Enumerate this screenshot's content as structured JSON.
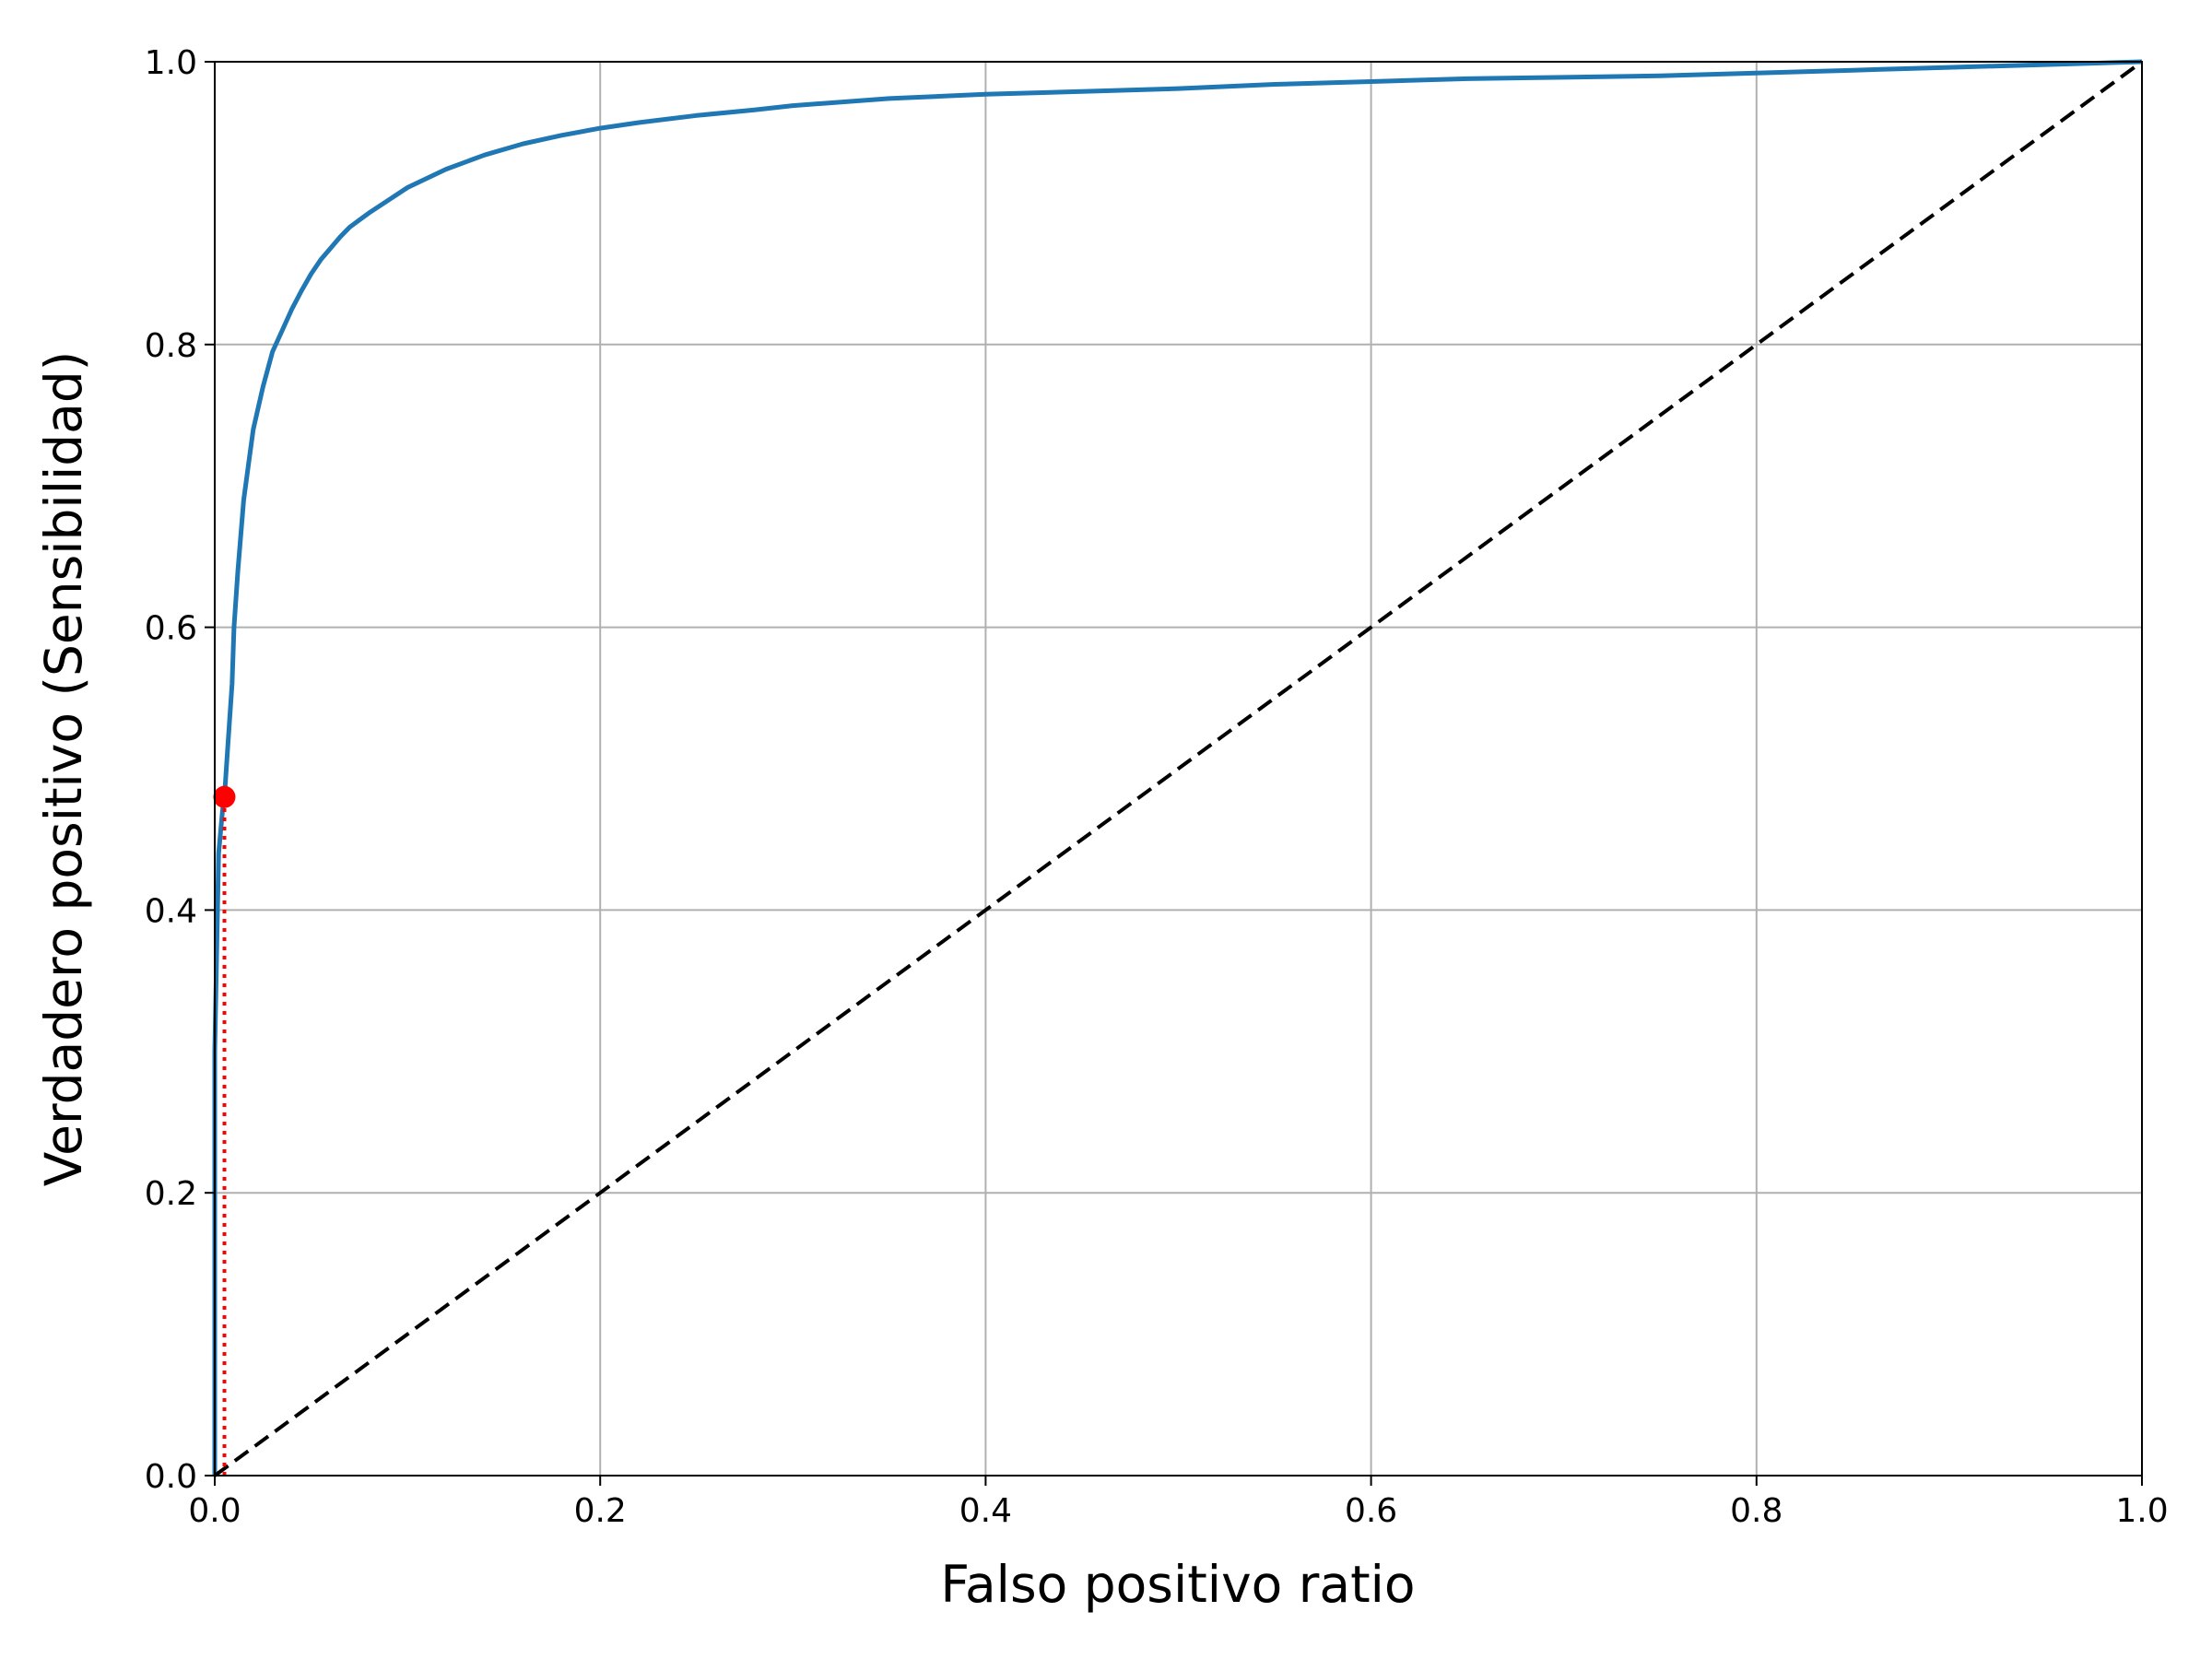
{
  "chart_data": {
    "type": "line",
    "title": "",
    "xlabel": "Falso positivo ratio",
    "ylabel": "Verdadero positivo (Sensibilidad)",
    "xlim": [
      0.0,
      1.0
    ],
    "ylim": [
      0.0,
      1.0
    ],
    "x_ticks": [
      "0.0",
      "0.2",
      "0.4",
      "0.6",
      "0.8",
      "1.0"
    ],
    "y_ticks": [
      "0.0",
      "0.2",
      "0.4",
      "0.6",
      "0.8",
      "1.0"
    ],
    "grid": true,
    "legend": "none",
    "series": [
      {
        "style": "solid",
        "color": "#1f77b4",
        "x": [
          0.0,
          0.0,
          0.002,
          0.004,
          0.005,
          0.007,
          0.009,
          0.01,
          0.012,
          0.015,
          0.018,
          0.02,
          0.025,
          0.03,
          0.035,
          0.04,
          0.045,
          0.05,
          0.055,
          0.06,
          0.065,
          0.07,
          0.075,
          0.08,
          0.09,
          0.1,
          0.12,
          0.14,
          0.16,
          0.18,
          0.2,
          0.22,
          0.25,
          0.28,
          0.3,
          0.35,
          0.4,
          0.45,
          0.5,
          0.55,
          0.6,
          0.65,
          0.7,
          0.75,
          0.8,
          0.85,
          0.9,
          0.95,
          1.0
        ],
        "y": [
          0.0,
          0.3,
          0.44,
          0.47,
          0.48,
          0.52,
          0.56,
          0.6,
          0.64,
          0.69,
          0.72,
          0.74,
          0.77,
          0.795,
          0.81,
          0.825,
          0.838,
          0.85,
          0.86,
          0.868,
          0.876,
          0.883,
          0.888,
          0.893,
          0.902,
          0.911,
          0.924,
          0.934,
          0.942,
          0.948,
          0.953,
          0.957,
          0.962,
          0.966,
          0.969,
          0.974,
          0.977,
          0.979,
          0.981,
          0.984,
          0.986,
          0.988,
          0.989,
          0.99,
          0.992,
          0.994,
          0.996,
          0.998,
          1.0
        ]
      },
      {
        "style": "dashed",
        "color": "#000000",
        "x": [
          0.0,
          1.0
        ],
        "y": [
          0.0,
          1.0
        ]
      },
      {
        "style": "dotted",
        "color": "#ff0000",
        "x": [
          0.005,
          0.005
        ],
        "y": [
          0.0,
          0.48
        ]
      }
    ],
    "points": [
      {
        "x": 0.005,
        "y": 0.48,
        "color": "#ff0000"
      }
    ]
  }
}
